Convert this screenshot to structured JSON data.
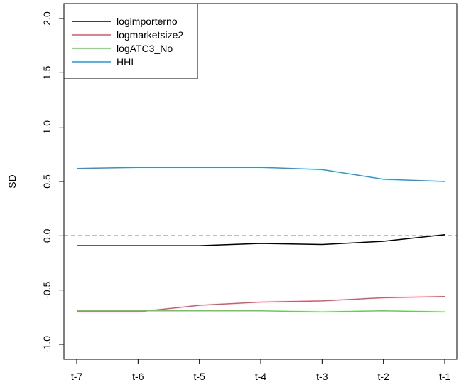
{
  "chart_data": {
    "type": "line",
    "title": "",
    "xlabel": "",
    "ylabel": "SD",
    "categories": [
      "t-7",
      "t-6",
      "t-5",
      "t-4",
      "t-3",
      "t-2",
      "t-1"
    ],
    "yticks": [
      "-1.0",
      "-0.5",
      "0.0",
      "0.5",
      "1.0",
      "1.5",
      "2.0"
    ],
    "ylim": [
      -1.0,
      2.0
    ],
    "reference_line": {
      "y": 0.0,
      "style": "dashed",
      "color": "#000000"
    },
    "legend_position": "top-left",
    "grid": false,
    "series": [
      {
        "name": "logimporterno",
        "color": "#000000",
        "values": [
          -0.09,
          -0.09,
          -0.09,
          -0.07,
          -0.08,
          -0.05,
          0.01
        ]
      },
      {
        "name": "logmarketsize2",
        "color": "#DF536B",
        "values": [
          -0.7,
          -0.7,
          -0.64,
          -0.61,
          -0.6,
          -0.57,
          -0.56
        ]
      },
      {
        "name": "logATC3_No",
        "color": "#61D04F",
        "values": [
          -0.69,
          -0.69,
          -0.69,
          -0.69,
          -0.7,
          -0.69,
          -0.7
        ]
      },
      {
        "name": "HHI",
        "color": "#2297E6",
        "values": [
          0.62,
          0.63,
          0.63,
          0.63,
          0.61,
          0.52,
          0.5
        ]
      }
    ]
  }
}
